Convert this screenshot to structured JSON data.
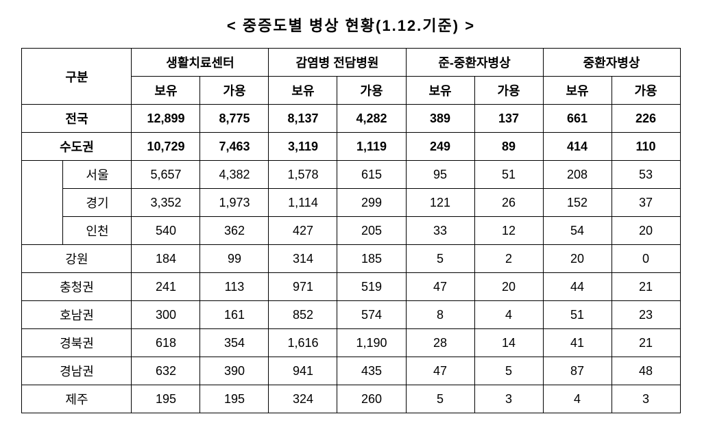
{
  "title": "< 중증도별 병상 현황(1.12.기준) >",
  "headers": {
    "gubun": "구분",
    "groups": [
      "생활치료센터",
      "감염병 전담병원",
      "준-중환자병상",
      "중환자병상"
    ],
    "sub": [
      "보유",
      "가용"
    ]
  },
  "rows": [
    {
      "type": "total",
      "label": "전국",
      "vals": [
        "12,899",
        "8,775",
        "8,137",
        "4,282",
        "389",
        "137",
        "661",
        "226"
      ]
    },
    {
      "type": "total",
      "label": "수도권",
      "vals": [
        "10,729",
        "7,463",
        "3,119",
        "1,119",
        "249",
        "89",
        "414",
        "110"
      ]
    },
    {
      "type": "sub",
      "label": "서울",
      "vals": [
        "5,657",
        "4,382",
        "1,578",
        "615",
        "95",
        "51",
        "208",
        "53"
      ]
    },
    {
      "type": "sub",
      "label": "경기",
      "vals": [
        "3,352",
        "1,973",
        "1,114",
        "299",
        "121",
        "26",
        "152",
        "37"
      ]
    },
    {
      "type": "sub",
      "label": "인천",
      "vals": [
        "540",
        "362",
        "427",
        "205",
        "33",
        "12",
        "54",
        "20"
      ]
    },
    {
      "type": "region",
      "label": "강원",
      "vals": [
        "184",
        "99",
        "314",
        "185",
        "5",
        "2",
        "20",
        "0"
      ]
    },
    {
      "type": "region",
      "label": "충청권",
      "vals": [
        "241",
        "113",
        "971",
        "519",
        "47",
        "20",
        "44",
        "21"
      ]
    },
    {
      "type": "region",
      "label": "호남권",
      "vals": [
        "300",
        "161",
        "852",
        "574",
        "8",
        "4",
        "51",
        "23"
      ]
    },
    {
      "type": "region",
      "label": "경북권",
      "vals": [
        "618",
        "354",
        "1,616",
        "1,190",
        "28",
        "14",
        "41",
        "21"
      ]
    },
    {
      "type": "region",
      "label": "경남권",
      "vals": [
        "632",
        "390",
        "941",
        "435",
        "47",
        "5",
        "87",
        "48"
      ]
    },
    {
      "type": "region",
      "label": "제주",
      "vals": [
        "195",
        "195",
        "324",
        "260",
        "5",
        "3",
        "4",
        "3"
      ]
    }
  ]
}
